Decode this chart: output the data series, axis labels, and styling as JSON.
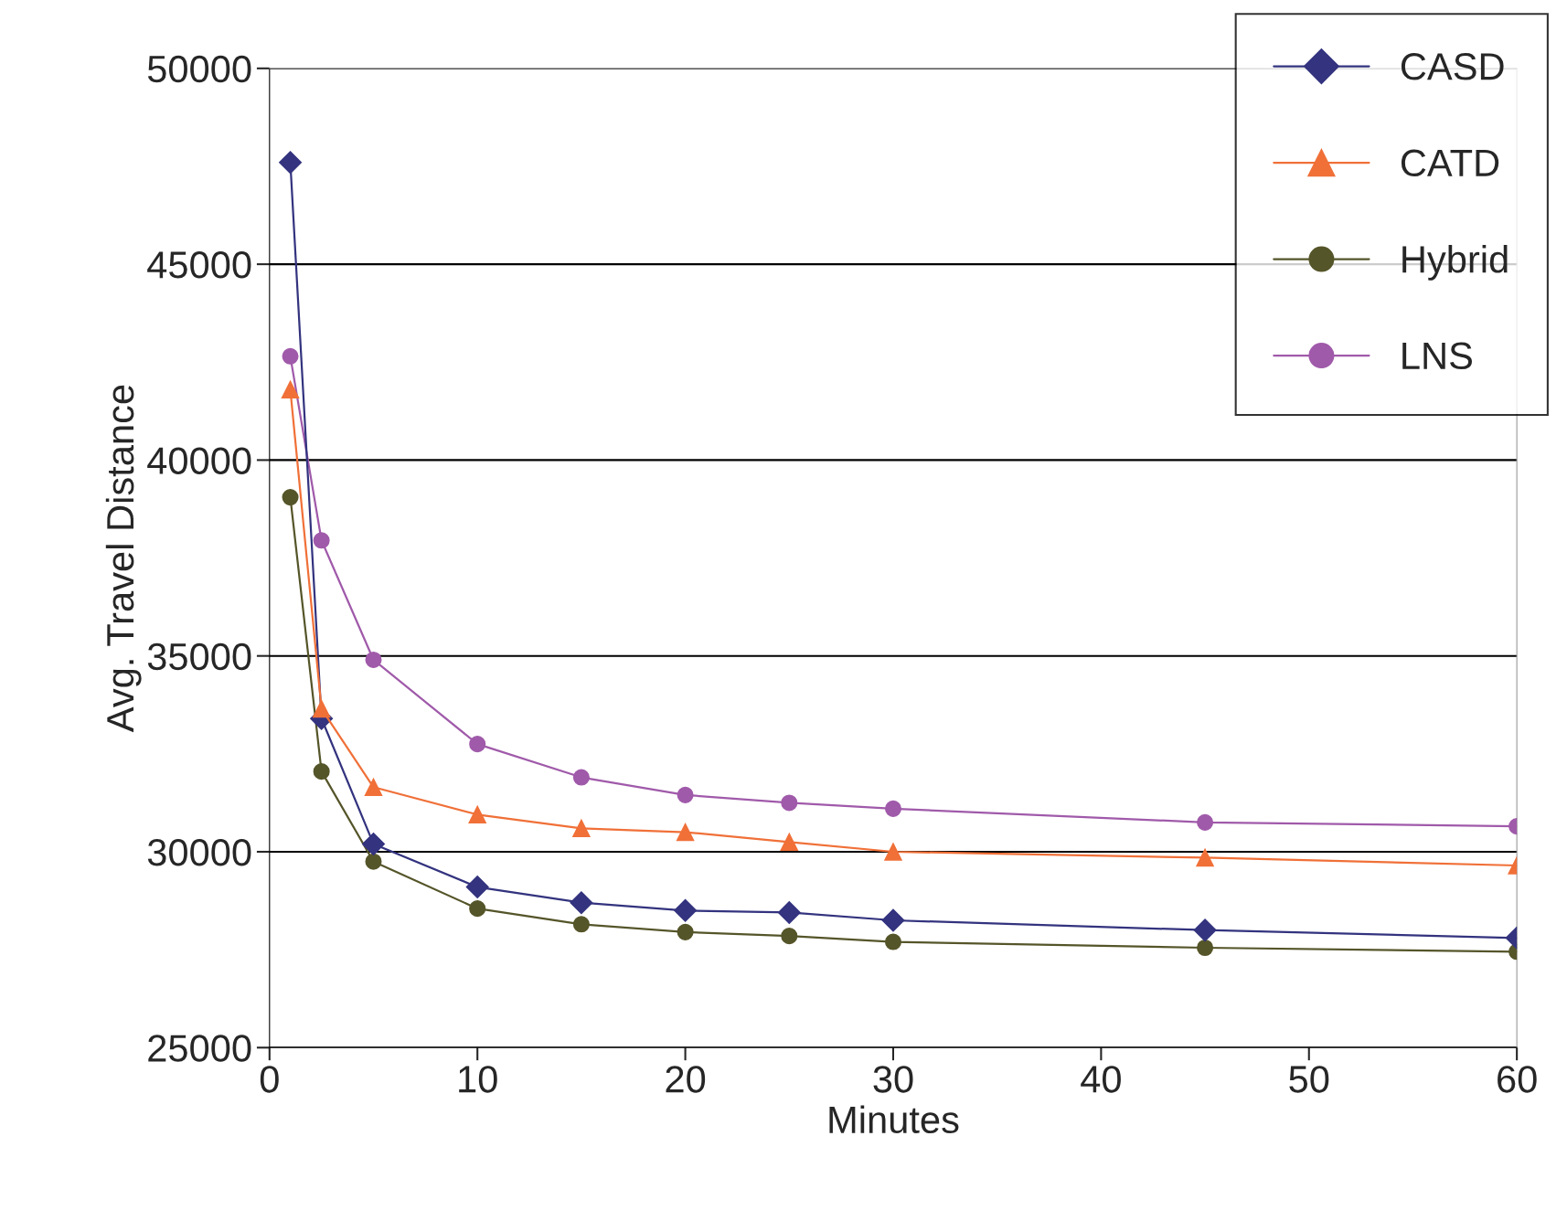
{
  "chart_data": {
    "type": "line",
    "xlabel": "Minutes",
    "ylabel": "Avg. Travel Distance",
    "x": [
      1,
      2.5,
      5,
      10,
      15,
      20,
      25,
      30,
      45,
      60
    ],
    "series": [
      {
        "name": "CASD",
        "color": "#33337f",
        "marker": "diamond",
        "values": [
          47600,
          33400,
          30200,
          29100,
          28700,
          28500,
          28450,
          28250,
          28000,
          27800
        ]
      },
      {
        "name": "CATD",
        "color": "#f07038",
        "marker": "triangle",
        "values": [
          41800,
          33650,
          31650,
          30950,
          30600,
          30500,
          30250,
          30000,
          29850,
          29650
        ]
      },
      {
        "name": "Hybrid",
        "color": "#55552a",
        "marker": "circle",
        "values": [
          39050,
          32050,
          29750,
          28550,
          28150,
          27950,
          27850,
          27700,
          27550,
          27450
        ]
      },
      {
        "name": "LNS",
        "color": "#a05aaa",
        "marker": "circle",
        "values": [
          42650,
          37950,
          34900,
          32750,
          31900,
          31450,
          31250,
          31100,
          30750,
          30650
        ]
      }
    ],
    "xlim": [
      0,
      60
    ],
    "xticks": [
      0,
      10,
      20,
      30,
      40,
      50,
      60
    ],
    "ylim": [
      25000,
      50000
    ],
    "yticks": [
      25000,
      30000,
      35000,
      40000,
      45000,
      50000
    ],
    "grid": "y",
    "legend": "top right",
    "line_style": "solid"
  }
}
